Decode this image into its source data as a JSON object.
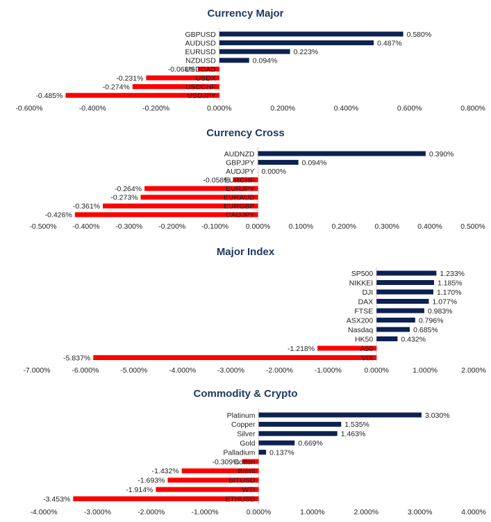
{
  "colors": {
    "positive": "#0d2252",
    "negative": "#ff0000",
    "title": "#1f3864"
  },
  "chart_data": [
    {
      "type": "bar",
      "orientation": "horizontal",
      "title": "Currency Major",
      "categories": [
        "GBPUSD",
        "AUDUSD",
        "EURUSD",
        "NZDUSD",
        "USDCAD",
        "USDX",
        "USDCHF",
        "USDJPY"
      ],
      "values": [
        0.58,
        0.487,
        0.223,
        0.094,
        -0.068,
        -0.231,
        -0.274,
        -0.485
      ],
      "value_labels": [
        "0.580%",
        "0.487%",
        "0.223%",
        "0.094%",
        "-0.068%",
        "-0.231%",
        "-0.274%",
        "-0.485%"
      ],
      "xlim": [
        -0.6,
        0.8
      ],
      "ticks": [
        -0.6,
        -0.4,
        -0.2,
        0.0,
        0.2,
        0.4,
        0.6,
        0.8
      ],
      "tick_labels": [
        "-0.600%",
        "-0.400%",
        "-0.200%",
        "0.000%",
        "0.200%",
        "0.400%",
        "0.600%",
        "0.800%"
      ],
      "grid": false
    },
    {
      "type": "bar",
      "orientation": "horizontal",
      "title": "Currency Cross",
      "categories": [
        "AUDNZD",
        "GBPJPY",
        "AUDJPY",
        "EURCHF",
        "EURJPY",
        "EURAUD",
        "EURGBP",
        "CADJPY"
      ],
      "values": [
        0.39,
        0.094,
        0.0,
        -0.058,
        -0.264,
        -0.273,
        -0.361,
        -0.426
      ],
      "value_labels": [
        "0.390%",
        "0.094%",
        "0.000%",
        "-0.058%",
        "-0.264%",
        "-0.273%",
        "-0.361%",
        "-0.426%"
      ],
      "xlim": [
        -0.5,
        0.5
      ],
      "ticks": [
        -0.5,
        -0.4,
        -0.3,
        -0.2,
        -0.1,
        0.0,
        0.1,
        0.2,
        0.3,
        0.4,
        0.5
      ],
      "tick_labels": [
        "-0.500%",
        "-0.400%",
        "-0.300%",
        "-0.200%",
        "-0.100%",
        "0.000%",
        "0.100%",
        "0.200%",
        "0.300%",
        "0.400%",
        "0.500%"
      ],
      "grid": false
    },
    {
      "type": "bar",
      "orientation": "horizontal",
      "title": "Major Index",
      "categories": [
        "SP500",
        "NIKKEI",
        "DJI",
        "DAX",
        "FTSE",
        "ASX200",
        "Nasdaq",
        "HK50",
        "A50",
        "VIX"
      ],
      "values": [
        1.233,
        1.185,
        1.17,
        1.077,
        0.983,
        0.796,
        0.685,
        0.432,
        -1.218,
        -5.837
      ],
      "value_labels": [
        "1.233%",
        "1.185%",
        "1.170%",
        "1.077%",
        "0.983%",
        "0.796%",
        "0.685%",
        "0.432%",
        "-1.218%",
        "-5.837%"
      ],
      "xlim": [
        -7,
        2
      ],
      "ticks": [
        -7,
        -6,
        -5,
        -4,
        -3,
        -2,
        -1,
        0,
        1,
        2
      ],
      "tick_labels": [
        "-7.000%",
        "-6.000%",
        "-5.000%",
        "-4.000%",
        "-3.000%",
        "-2.000%",
        "-1.000%",
        "0.000%",
        "1.000%",
        "2.000%"
      ],
      "grid": false
    },
    {
      "type": "bar",
      "orientation": "horizontal",
      "title": "Commodity & Crypto",
      "categories": [
        "Platinum",
        "Copper",
        "Silver",
        "Gold",
        "Palladium",
        "Cotton",
        "Brent",
        "BITUSD",
        "WTI",
        "ETHUSD"
      ],
      "values": [
        3.03,
        1.535,
        1.463,
        0.669,
        0.137,
        -0.309,
        -1.432,
        -1.693,
        -1.914,
        -3.453
      ],
      "value_labels": [
        "3.030%",
        "1.535%",
        "1.463%",
        "0.669%",
        "0.137%",
        "-0.309%",
        "-1.432%",
        "-1.693%",
        "-1.914%",
        "-3.453%"
      ],
      "xlim": [
        -4,
        4
      ],
      "ticks": [
        -4,
        -3,
        -2,
        -1,
        0,
        1,
        2,
        3,
        4
      ],
      "tick_labels": [
        "-4.000%",
        "-3.000%",
        "-2.000%",
        "-1.000%",
        "0.000%",
        "1.000%",
        "2.000%",
        "3.000%",
        "4.000%"
      ],
      "grid": false
    }
  ]
}
